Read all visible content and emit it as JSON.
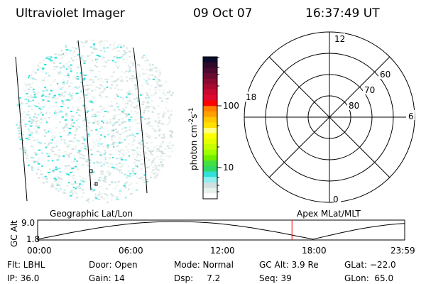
{
  "header": {
    "instrument": "Ultraviolet Imager",
    "date": "09 Oct 07",
    "time": "16:37:49 UT"
  },
  "colorbar": {
    "label": "photon cm",
    "label_exp1": "-2",
    "label_mid": "s",
    "label_exp2": "-1",
    "ticks": [
      "100",
      "10"
    ],
    "colors": [
      "#0b0b2e",
      "#2e0a2a",
      "#4a0a30",
      "#6a0a30",
      "#8a0a30",
      "#aa0a30",
      "#c80a30",
      "#e00a30",
      "#ff0000",
      "#ff8000",
      "#ffa000",
      "#ffc800",
      "#ffe000",
      "#ffff80",
      "#ffff00",
      "#e6ff00",
      "#c8ff00",
      "#a0ff00",
      "#70f000",
      "#45e040",
      "#30d868",
      "#30e0d8",
      "#90eef0",
      "#d0e0e0",
      "#e8f2ec",
      "#ffffff"
    ]
  },
  "polar": {
    "labels": {
      "top": "12",
      "bottom": "0",
      "left": "18",
      "right": "6"
    },
    "lat_labels": [
      "60",
      "70",
      "80"
    ]
  },
  "timeline": {
    "left_title": "Geographic Lat/Lon",
    "right_title": "Apex MLat/MLT",
    "ylabel": "GC Alt",
    "ymax": "9.0",
    "ymin": "1.8",
    "xticks": [
      "00:00",
      "06:00",
      "12:00",
      "18:00",
      "23:59"
    ],
    "current_time_hours": 16.63,
    "marker_color": "#ff0000"
  },
  "info": {
    "row1": [
      "Flt: LBHL",
      "Door: Open",
      "Mode: Normal",
      "GC Alt: 3.9 Re",
      "GLat: −22.0"
    ],
    "row2": [
      "IP: 36.0",
      "Gain: 14",
      "Dsp:     7.2",
      "Seq: 39",
      "GLon:  65.0"
    ]
  }
}
